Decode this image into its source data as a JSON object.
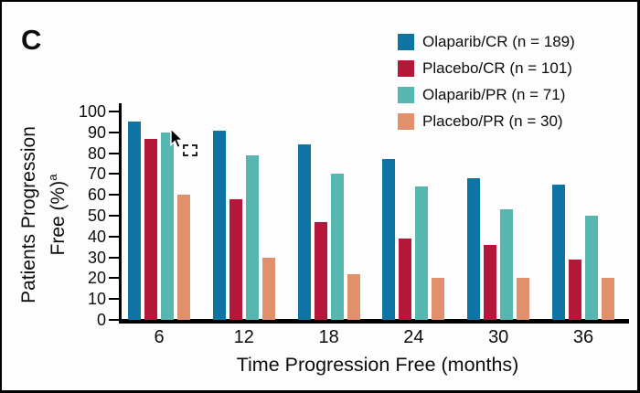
{
  "panel_label": "C",
  "colors": {
    "olaparib_cr": "#0e74a4",
    "placebo_cr": "#b5173a",
    "olaparib_pr": "#55b7b0",
    "placebo_pr": "#e0916b",
    "axis": "#000000",
    "background": "#fdfdfd"
  },
  "chart_data": {
    "type": "bar",
    "categories": [
      "6",
      "12",
      "18",
      "24",
      "30",
      "36"
    ],
    "series": [
      {
        "name": "Olaparib/CR (n = 189)",
        "color": "#0e74a4",
        "values": [
          95,
          91,
          84,
          77,
          68,
          65
        ]
      },
      {
        "name": "Placebo/CR (n = 101)",
        "color": "#b5173a",
        "values": [
          87,
          58,
          47,
          39,
          36,
          29
        ]
      },
      {
        "name": "Olaparib/PR (n = 71)",
        "color": "#55b7b0",
        "values": [
          90,
          79,
          70,
          64,
          53,
          50
        ]
      },
      {
        "name": "Placebo/PR (n = 30)",
        "color": "#e0916b",
        "values": [
          60,
          30,
          22,
          20,
          20,
          20
        ]
      }
    ],
    "xlabel": "Time Progression Free (months)",
    "ylabel_line1": "Patients Progression",
    "ylabel_line2": "Free (%)",
    "ylabel_superscript": "a",
    "ylim": [
      0,
      100
    ],
    "yticks": [
      0,
      10,
      20,
      30,
      40,
      50,
      60,
      70,
      80,
      90,
      100
    ],
    "legend_position": "top-right",
    "grid": false
  },
  "cursor": {
    "pointer_icon": "arrow-pointer",
    "selection_icon": "dashed-selection-box"
  }
}
